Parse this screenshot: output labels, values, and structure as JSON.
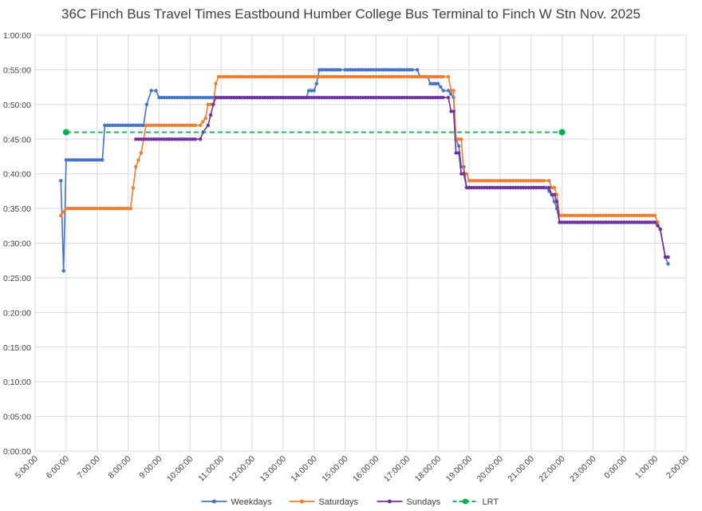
{
  "chart_data": {
    "type": "line",
    "title": "36C Finch Bus Travel Times Eastbound Humber College Bus Terminal to Finch W Stn Nov. 2025",
    "xlabel": "",
    "ylabel": "",
    "x_unit": "time of day (hours after midnight; values above 24 are after midnight of the following day)",
    "y_unit": "minutes",
    "xlim": [
      5,
      26
    ],
    "ylim": [
      0,
      60
    ],
    "x_tick_labels": [
      "5:00:00",
      "6:00:00",
      "7:00:00",
      "8:00:00",
      "9:00:00",
      "10:00:00",
      "11:00:00",
      "12:00:00",
      "13:00:00",
      "14:00:00",
      "15:00:00",
      "16:00:00",
      "17:00:00",
      "18:00:00",
      "19:00:00",
      "20:00:00",
      "21:00:00",
      "22:00:00",
      "23:00:00",
      "0:00:00",
      "1:00:00",
      "2:00:00"
    ],
    "y_tick_labels": [
      "0:00:00",
      "0:05:00",
      "0:10:00",
      "0:15:00",
      "0:20:00",
      "0:25:00",
      "0:30:00",
      "0:35:00",
      "0:40:00",
      "0:45:00",
      "0:50:00",
      "0:55:00",
      "1:00:00"
    ],
    "grid": true,
    "legend_position": "bottom",
    "series": [
      {
        "name": "Weekdays",
        "color": "#4472C4",
        "marker": "circle",
        "line": "solid",
        "points": [
          [
            5.83,
            39
          ],
          [
            5.92,
            26
          ],
          [
            6.0,
            42
          ],
          [
            6.5,
            42
          ],
          [
            7.0,
            42
          ],
          [
            7.17,
            42
          ],
          [
            7.25,
            47
          ],
          [
            7.5,
            47
          ],
          [
            7.75,
            47
          ],
          [
            8.0,
            47
          ],
          [
            8.25,
            47
          ],
          [
            8.5,
            47
          ],
          [
            8.6,
            50
          ],
          [
            8.75,
            52
          ],
          [
            8.9,
            52
          ],
          [
            9.0,
            51
          ],
          [
            9.5,
            51
          ],
          [
            10.0,
            51
          ],
          [
            10.5,
            51
          ],
          [
            11.0,
            51
          ],
          [
            12.0,
            51
          ],
          [
            13.0,
            51
          ],
          [
            13.75,
            51
          ],
          [
            13.83,
            52
          ],
          [
            14.0,
            52
          ],
          [
            14.08,
            53
          ],
          [
            14.17,
            55
          ],
          [
            15.0,
            55
          ],
          [
            16.0,
            55
          ],
          [
            17.0,
            55
          ],
          [
            17.33,
            55
          ],
          [
            17.42,
            54
          ],
          [
            17.67,
            54
          ],
          [
            17.75,
            53
          ],
          [
            18.0,
            53
          ],
          [
            18.17,
            52
          ],
          [
            18.33,
            52
          ],
          [
            18.5,
            51
          ],
          [
            18.58,
            45
          ],
          [
            18.67,
            44
          ],
          [
            18.75,
            41
          ],
          [
            18.83,
            41
          ],
          [
            18.92,
            38
          ],
          [
            19.0,
            38
          ],
          [
            20.0,
            38
          ],
          [
            21.0,
            38
          ],
          [
            21.5,
            38
          ],
          [
            21.67,
            37
          ],
          [
            21.75,
            36
          ],
          [
            21.83,
            35
          ],
          [
            21.92,
            33
          ],
          [
            22.0,
            33
          ],
          [
            23.0,
            33
          ],
          [
            24.0,
            33
          ],
          [
            25.0,
            33
          ],
          [
            25.08,
            33
          ],
          [
            25.17,
            32
          ],
          [
            25.33,
            28
          ],
          [
            25.42,
            27
          ]
        ]
      },
      {
        "name": "Saturdays",
        "color": "#ED7D31",
        "marker": "circle",
        "line": "solid",
        "points": [
          [
            5.83,
            34
          ],
          [
            6.0,
            35
          ],
          [
            7.0,
            35
          ],
          [
            8.0,
            35
          ],
          [
            8.08,
            35
          ],
          [
            8.25,
            41
          ],
          [
            8.42,
            43
          ],
          [
            8.58,
            47
          ],
          [
            9.0,
            47
          ],
          [
            10.0,
            47
          ],
          [
            10.33,
            47
          ],
          [
            10.5,
            48
          ],
          [
            10.58,
            50
          ],
          [
            10.75,
            50
          ],
          [
            10.83,
            53
          ],
          [
            10.92,
            54
          ],
          [
            11.0,
            54
          ],
          [
            12.0,
            54
          ],
          [
            13.0,
            54
          ],
          [
            14.0,
            54
          ],
          [
            15.0,
            54
          ],
          [
            16.0,
            54
          ],
          [
            17.0,
            54
          ],
          [
            18.0,
            54
          ],
          [
            18.33,
            54
          ],
          [
            18.42,
            52
          ],
          [
            18.5,
            52
          ],
          [
            18.58,
            45
          ],
          [
            18.75,
            45
          ],
          [
            18.83,
            40
          ],
          [
            18.92,
            40
          ],
          [
            19.0,
            39
          ],
          [
            20.0,
            39
          ],
          [
            21.0,
            39
          ],
          [
            21.58,
            39
          ],
          [
            21.67,
            38
          ],
          [
            21.75,
            38
          ],
          [
            21.83,
            37
          ],
          [
            21.92,
            34
          ],
          [
            22.0,
            34
          ],
          [
            23.0,
            34
          ],
          [
            24.0,
            34
          ],
          [
            24.92,
            34
          ],
          [
            25.0,
            34
          ],
          [
            25.17,
            32
          ],
          [
            25.33,
            28
          ],
          [
            25.42,
            28
          ]
        ]
      },
      {
        "name": "Sundays",
        "color": "#7030A0",
        "marker": "circle",
        "line": "solid",
        "points": [
          [
            8.25,
            45
          ],
          [
            9.0,
            45
          ],
          [
            10.0,
            45
          ],
          [
            10.33,
            45
          ],
          [
            10.42,
            46
          ],
          [
            10.58,
            47
          ],
          [
            10.75,
            50
          ],
          [
            10.83,
            51
          ],
          [
            11.0,
            51
          ],
          [
            12.0,
            51
          ],
          [
            13.0,
            51
          ],
          [
            14.0,
            51
          ],
          [
            15.0,
            51
          ],
          [
            16.0,
            51
          ],
          [
            17.0,
            51
          ],
          [
            18.0,
            51
          ],
          [
            18.33,
            51
          ],
          [
            18.42,
            49
          ],
          [
            18.5,
            49
          ],
          [
            18.58,
            43
          ],
          [
            18.67,
            43
          ],
          [
            18.75,
            40
          ],
          [
            18.83,
            40
          ],
          [
            18.92,
            38
          ],
          [
            19.0,
            38
          ],
          [
            20.0,
            38
          ],
          [
            21.0,
            38
          ],
          [
            21.58,
            38
          ],
          [
            21.67,
            37
          ],
          [
            21.75,
            37
          ],
          [
            21.83,
            36
          ],
          [
            21.92,
            33
          ],
          [
            22.0,
            33
          ],
          [
            23.0,
            33
          ],
          [
            24.0,
            33
          ],
          [
            24.92,
            33
          ],
          [
            25.0,
            33
          ],
          [
            25.17,
            32
          ],
          [
            25.33,
            28
          ],
          [
            25.42,
            28
          ]
        ]
      },
      {
        "name": "LRT",
        "color": "#00B050",
        "marker": "circle",
        "line": "dashed",
        "points": [
          [
            6.0,
            46
          ],
          [
            22.0,
            46
          ]
        ]
      }
    ]
  }
}
